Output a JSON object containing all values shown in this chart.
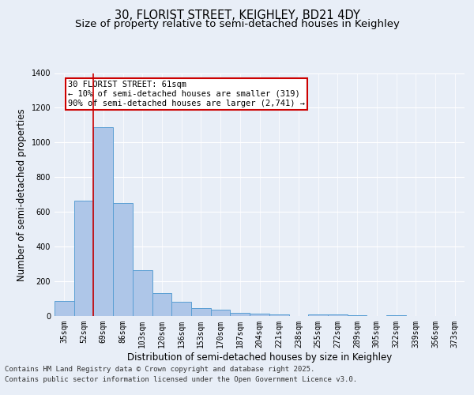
{
  "title_line1": "30, FLORIST STREET, KEIGHLEY, BD21 4DY",
  "title_line2": "Size of property relative to semi-detached houses in Keighley",
  "xlabel": "Distribution of semi-detached houses by size in Keighley",
  "ylabel": "Number of semi-detached properties",
  "categories": [
    "35sqm",
    "52sqm",
    "69sqm",
    "86sqm",
    "103sqm",
    "120sqm",
    "136sqm",
    "153sqm",
    "170sqm",
    "187sqm",
    "204sqm",
    "221sqm",
    "238sqm",
    "255sqm",
    "272sqm",
    "289sqm",
    "305sqm",
    "322sqm",
    "339sqm",
    "356sqm",
    "373sqm"
  ],
  "values": [
    85,
    665,
    1090,
    650,
    265,
    130,
    80,
    45,
    35,
    20,
    15,
    10,
    0,
    10,
    10,
    5,
    0,
    5,
    0,
    0,
    0
  ],
  "bar_color": "#aec6e8",
  "bar_edge_color": "#5a9fd4",
  "vline_color": "#cc0000",
  "annotation_text": "30 FLORIST STREET: 61sqm\n← 10% of semi-detached houses are smaller (319)\n90% of semi-detached houses are larger (2,741) →",
  "annotation_box_color": "#cc0000",
  "background_color": "#e8eef7",
  "plot_bg_color": "#e8eef7",
  "ylim": [
    0,
    1400
  ],
  "yticks": [
    0,
    200,
    400,
    600,
    800,
    1000,
    1200,
    1400
  ],
  "footer_line1": "Contains HM Land Registry data © Crown copyright and database right 2025.",
  "footer_line2": "Contains public sector information licensed under the Open Government Licence v3.0.",
  "title_fontsize": 10.5,
  "subtitle_fontsize": 9.5,
  "axis_label_fontsize": 8.5,
  "tick_fontsize": 7,
  "annotation_fontsize": 7.5,
  "footer_fontsize": 6.5
}
